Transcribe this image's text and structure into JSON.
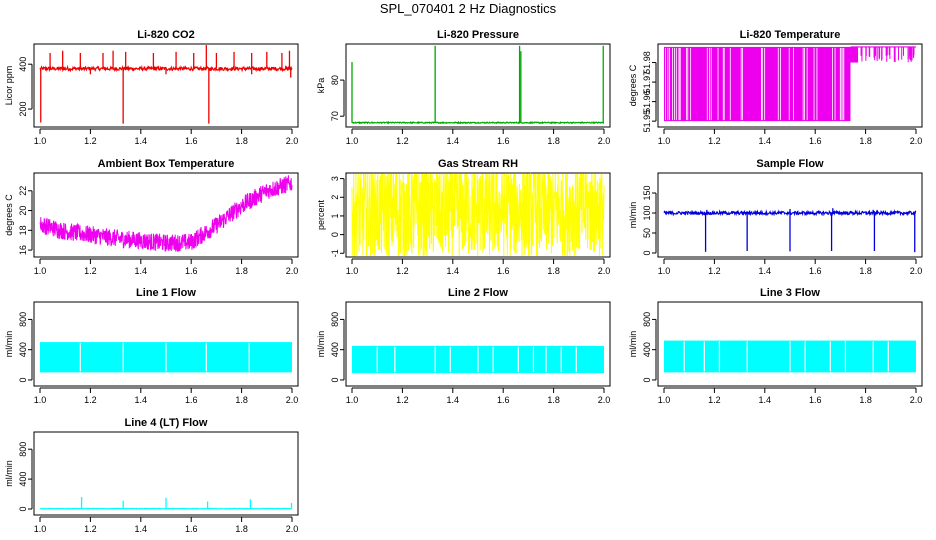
{
  "page_title": "SPL_070401  2 Hz Diagnostics",
  "chart_data": [
    {
      "type": "line",
      "title": "Li-820 CO2",
      "ylabel": "Licor ppm",
      "color": "#ee0000",
      "pattern": "spikes",
      "xlim": [
        1.0,
        2.0
      ],
      "ylim": [
        120,
        490
      ],
      "xticks": [
        "1.0",
        "1.2",
        "1.4",
        "1.6",
        "1.8",
        "2.0"
      ],
      "yticks": [
        200,
        400
      ],
      "series": [
        {
          "baseline": 380,
          "noise": 8,
          "spikes_up": [
            [
              1.04,
              450
            ],
            [
              1.09,
              460
            ],
            [
              1.16,
              450
            ],
            [
              1.25,
              450
            ],
            [
              1.29,
              460
            ],
            [
              1.34,
              455
            ],
            [
              1.45,
              450
            ],
            [
              1.54,
              455
            ],
            [
              1.61,
              450
            ],
            [
              1.66,
              485
            ],
            [
              1.7,
              450
            ],
            [
              1.77,
              455
            ],
            [
              1.84,
              450
            ],
            [
              1.9,
              455
            ],
            [
              1.96,
              450
            ],
            [
              1.99,
              460
            ]
          ],
          "spikes_down": [
            [
              1.003,
              140
            ],
            [
              1.33,
              135
            ],
            [
              1.67,
              135
            ],
            [
              1.2,
              355
            ],
            [
              1.5,
              355
            ],
            [
              1.84,
              355
            ],
            [
              1.995,
              340
            ]
          ]
        }
      ]
    },
    {
      "type": "line",
      "title": "Li-820 Pressure",
      "ylabel": "kPa",
      "color": "#00aa00",
      "pattern": "spikes",
      "xlim": [
        1.0,
        2.0
      ],
      "ylim": [
        67,
        90
      ],
      "xticks": [
        "1.0",
        "1.2",
        "1.4",
        "1.6",
        "1.8",
        "2.0"
      ],
      "yticks": [
        70,
        80
      ],
      "series": [
        {
          "baseline": 68.2,
          "noise": 0.15,
          "spikes_up": [
            [
              1.0,
              85
            ],
            [
              1.33,
              89.5
            ],
            [
              1.665,
              89.5
            ],
            [
              1.67,
              88
            ],
            [
              1.997,
              89.5
            ]
          ],
          "spikes_down": []
        }
      ]
    },
    {
      "type": "line",
      "title": "Li-820 Temperature",
      "ylabel": "degrees C",
      "color": "#ee00ee",
      "pattern": "fill",
      "xlim": [
        1.0,
        2.0
      ],
      "ylim": [
        51.947,
        51.9895
      ],
      "xticks": [
        "1.0",
        "1.2",
        "1.4",
        "1.6",
        "1.8",
        "2.0"
      ],
      "yticks": [
        51.95,
        51.96,
        51.97,
        51.98
      ],
      "series": [
        {
          "low": 51.95,
          "high": 51.988,
          "switch_x": 1.74,
          "late_low": 51.98
        }
      ]
    },
    {
      "type": "line",
      "title": "Ambient Box Temperature",
      "ylabel": "degrees C",
      "color": "#ee00ee",
      "pattern": "noisy",
      "xlim": [
        1.0,
        2.0
      ],
      "ylim": [
        15.3,
        23.8
      ],
      "xticks": [
        "1.0",
        "1.2",
        "1.4",
        "1.6",
        "1.8",
        "2.0"
      ],
      "yticks": [
        16,
        18,
        20,
        22
      ],
      "series": [
        {
          "curve": [
            [
              1.0,
              18.6
            ],
            [
              1.1,
              17.9
            ],
            [
              1.3,
              17.2
            ],
            [
              1.5,
              16.7
            ],
            [
              1.6,
              16.8
            ],
            [
              1.7,
              18.5
            ],
            [
              1.8,
              20.5
            ],
            [
              1.9,
              22.0
            ],
            [
              2.0,
              22.8
            ]
          ],
          "noise": 0.9
        }
      ]
    },
    {
      "type": "line",
      "title": "Gas Stream RH",
      "ylabel": "percent",
      "color": "#ffff00",
      "pattern": "noisy",
      "xlim": [
        1.0,
        2.0
      ],
      "ylim": [
        -1.2,
        3.3
      ],
      "xticks": [
        "1.0",
        "1.2",
        "1.4",
        "1.6",
        "1.8",
        "2.0"
      ],
      "yticks": [
        -1,
        0,
        1,
        2,
        3
      ],
      "series": [
        {
          "curve": [
            [
              1.0,
              1.2
            ],
            [
              2.0,
              1.4
            ]
          ],
          "noise": 2.6
        }
      ]
    },
    {
      "type": "line",
      "title": "Sample Flow",
      "ylabel": "ml/min",
      "color": "#0000dd",
      "pattern": "spikes",
      "xlim": [
        1.0,
        2.0
      ],
      "ylim": [
        -10,
        200
      ],
      "xticks": [
        "1.0",
        "1.2",
        "1.4",
        "1.6",
        "1.8",
        "2.0"
      ],
      "yticks": [
        0,
        50,
        100,
        150
      ],
      "series": [
        {
          "baseline": 100,
          "noise": 4,
          "spikes_up": [
            [
              1.5,
              110
            ],
            [
              1.67,
              112
            ],
            [
              1.83,
              108
            ],
            [
              1.17,
              108
            ],
            [
              1.34,
              106
            ]
          ],
          "spikes_down": [
            [
              1.165,
              3
            ],
            [
              1.33,
              5
            ],
            [
              1.5,
              4
            ],
            [
              1.665,
              5
            ],
            [
              1.835,
              5
            ],
            [
              1.995,
              2
            ]
          ]
        }
      ]
    },
    {
      "type": "line",
      "title": "Line 1 Flow",
      "ylabel": "ml/min",
      "color": "#00ffff",
      "pattern": "band",
      "xlim": [
        1.0,
        2.0
      ],
      "ylim": [
        -80,
        1030
      ],
      "xticks": [
        "1.0",
        "1.2",
        "1.4",
        "1.6",
        "1.8",
        "2.0"
      ],
      "yticks": [
        0,
        400,
        800
      ],
      "series": [
        {
          "low": 100,
          "high": 500,
          "gaps": [
            1.16,
            1.33,
            1.5,
            1.66,
            1.83
          ]
        }
      ]
    },
    {
      "type": "line",
      "title": "Line 2 Flow",
      "ylabel": "ml/min",
      "color": "#00ffff",
      "pattern": "band",
      "xlim": [
        1.0,
        2.0
      ],
      "ylim": [
        -80,
        1030
      ],
      "xticks": [
        "1.0",
        "1.2",
        "1.4",
        "1.6",
        "1.8",
        "2.0"
      ],
      "yticks": [
        0,
        400,
        800
      ],
      "series": [
        {
          "low": 90,
          "high": 450,
          "gaps": [
            1.1,
            1.17,
            1.33,
            1.39,
            1.5,
            1.56,
            1.66,
            1.72,
            1.77,
            1.83,
            1.89
          ]
        }
      ]
    },
    {
      "type": "line",
      "title": "Line 3 Flow",
      "ylabel": "ml/min",
      "color": "#00ffff",
      "pattern": "band",
      "xlim": [
        1.0,
        2.0
      ],
      "ylim": [
        -80,
        1030
      ],
      "xticks": [
        "1.0",
        "1.2",
        "1.4",
        "1.6",
        "1.8",
        "2.0"
      ],
      "yticks": [
        0,
        400,
        800
      ],
      "series": [
        {
          "low": 100,
          "high": 520,
          "gaps": [
            1.08,
            1.16,
            1.22,
            1.33,
            1.5,
            1.56,
            1.66,
            1.72,
            1.83,
            1.89
          ]
        }
      ]
    },
    {
      "type": "line",
      "title": "Line 4 (LT) Flow",
      "ylabel": "ml/min",
      "color": "#00ffff",
      "pattern": "spikes",
      "xlim": [
        1.0,
        2.0
      ],
      "ylim": [
        -80,
        1030
      ],
      "xticks": [
        "1.0",
        "1.2",
        "1.4",
        "1.6",
        "1.8",
        "2.0"
      ],
      "yticks": [
        0,
        400,
        800
      ],
      "series": [
        {
          "baseline": 5,
          "noise": 3,
          "spikes_up": [
            [
              1.165,
              160
            ],
            [
              1.33,
              110
            ],
            [
              1.5,
              150
            ],
            [
              1.665,
              100
            ],
            [
              1.835,
              130
            ],
            [
              1.998,
              80
            ]
          ],
          "spikes_down": []
        }
      ]
    }
  ]
}
